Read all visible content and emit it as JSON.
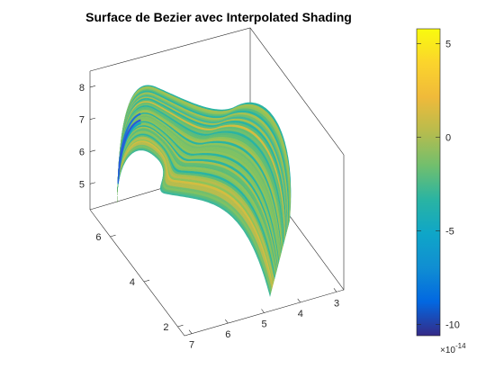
{
  "chart_data": {
    "type": "surface",
    "title": "Surface de Bezier avec Interpolated Shading",
    "shading": "interpolated",
    "x_axis": {
      "ticks": [
        3,
        4,
        5,
        6,
        7
      ],
      "range": [
        2.8,
        7.2
      ]
    },
    "y_axis": {
      "ticks": [
        2,
        4,
        6
      ],
      "range": [
        1.6,
        7.2
      ]
    },
    "z_axis": {
      "ticks": [
        5,
        6,
        7,
        8
      ],
      "range": [
        4.2,
        8.5
      ]
    },
    "colorbar": {
      "ticks": [
        5,
        0,
        -5,
        -10
      ],
      "range": [
        -10.6,
        5.8
      ],
      "exponent_label": "×10",
      "exponent": "-14",
      "colormap": [
        "#352a87",
        "#0268e1",
        "#108ed2",
        "#0fa6c8",
        "#2ab4a2",
        "#72bf6d",
        "#b8bc4d",
        "#f0ba3a",
        "#fbd42c",
        "#f9fb0e"
      ]
    },
    "grid": false,
    "legend": "colorbar-right"
  }
}
